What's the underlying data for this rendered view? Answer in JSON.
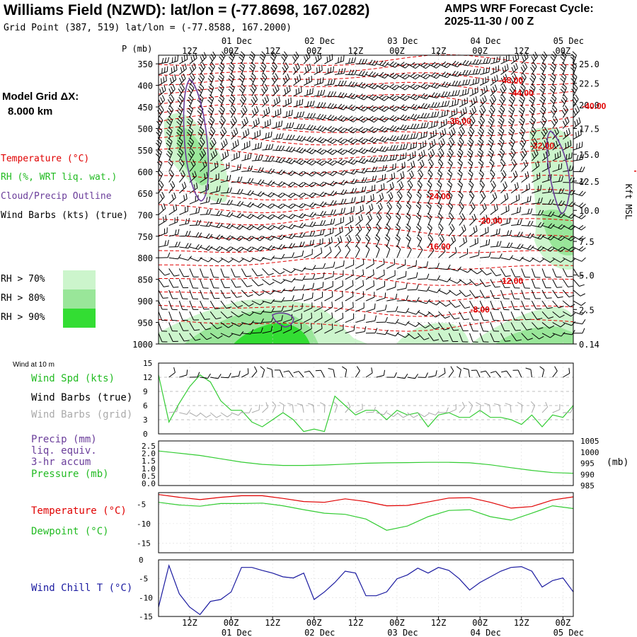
{
  "header": {
    "title": "Williams Field (NZWD):  lat/lon = (-77.8698, 167.0282)",
    "grid_point": "Grid Point (387, 519) lat/lon = (-77.8588, 167.2000)",
    "cycle_line1": "AMPS WRF Forecast Cycle:",
    "cycle_line2": "2025-11-30 / 00  Z"
  },
  "time_axis": {
    "hour_labels": [
      "12Z",
      "00Z",
      "12Z",
      "00Z",
      "12Z",
      "00Z",
      "12Z",
      "00Z",
      "12Z",
      "00Z"
    ],
    "date_labels": [
      "01 Dec",
      "02 Dec",
      "03 Dec",
      "04 Dec",
      "05 Dec"
    ]
  },
  "legend": {
    "model_grid": "Model Grid ΔX:",
    "model_grid_value": "8.000 km",
    "temperature": "Temperature (°C)",
    "rh": "RH (%, WRT liq. wat.)",
    "cloud": "Cloud/Precip Outline",
    "wind_barbs": "Wind Barbs (kts) (true)",
    "rh70": "RH > 70%",
    "rh80": "RH > 80%",
    "rh90": "RH > 90%"
  },
  "colors": {
    "temperature": "#e00000",
    "rh70": "#ccf5cc",
    "rh80": "#99e699",
    "rh90": "#33dd33",
    "cloud": "#6a3d9a",
    "wind_spd": "#33cc33",
    "barbs_grid": "#aaaaaa",
    "wind_chill": "#1a1aa0",
    "precip": "#6a3d9a"
  },
  "chart_data": [
    {
      "type": "line",
      "title": "Cross-section",
      "ylabel": "P (mb)",
      "ylabel_right": "Kft MSL",
      "pressure_ticks": [
        "350",
        "400",
        "450",
        "500",
        "550",
        "600",
        "650",
        "700",
        "750",
        "800",
        "850",
        "900",
        "950",
        "1000"
      ],
      "height_ticks": [
        {
          "p": 350,
          "label": "25.0"
        },
        {
          "p": 395,
          "label": "22.5"
        },
        {
          "p": 445,
          "label": "20.0"
        },
        {
          "p": 500,
          "label": "17.5"
        },
        {
          "p": 560,
          "label": "15.0"
        },
        {
          "p": 622,
          "label": "12.5"
        },
        {
          "p": 690,
          "label": "10.0"
        },
        {
          "p": 762,
          "label": "7.5"
        },
        {
          "p": 840,
          "label": "5.0"
        },
        {
          "p": 920,
          "label": "2.5"
        },
        {
          "p": 1000,
          "label": "0.14"
        }
      ],
      "temperature_labels": [
        {
          "label": "-48.00",
          "t": 34,
          "p": 388
        },
        {
          "label": "-44.00",
          "t": 35,
          "p": 418
        },
        {
          "label": "-40.00",
          "t": 42,
          "p": 448
        },
        {
          "label": "-36.00",
          "t": 29,
          "p": 483
        },
        {
          "label": "-32.00",
          "t": 37,
          "p": 540
        },
        {
          "label": "-28.00",
          "t": 47,
          "p": 598
        },
        {
          "label": "-24.00",
          "t": 27,
          "p": 658
        },
        {
          "label": "-20.00",
          "t": 32,
          "p": 714
        },
        {
          "label": "-16.00",
          "t": 27,
          "p": 774
        },
        {
          "label": "-12.00",
          "t": 34,
          "p": 854
        },
        {
          "label": "-8.00",
          "t": 31,
          "p": 920
        }
      ]
    },
    {
      "type": "line",
      "title": "Wind at 10 m",
      "yticks": [
        "15",
        "12",
        "9",
        "6",
        "3",
        "0"
      ],
      "ylim": [
        0,
        15
      ],
      "labels": {
        "wind_spd": "Wind Spd (kts)",
        "barbs_true": "Wind Barbs (true)",
        "barbs_grid": "Wind Barbs (grid)"
      },
      "t": [
        0,
        1,
        2,
        3,
        4,
        5,
        6,
        7,
        8,
        9,
        10,
        11,
        12,
        13,
        14,
        15,
        16,
        17,
        18,
        19,
        20,
        21,
        22,
        23,
        24,
        25,
        26,
        27,
        28,
        29,
        30,
        31,
        32,
        33,
        34,
        35,
        36,
        37,
        38,
        39,
        40
      ],
      "values": [
        12.5,
        2.5,
        6.5,
        10,
        12.5,
        11,
        7,
        5,
        5,
        2.5,
        1.5,
        3,
        4.5,
        3,
        0.5,
        1,
        0.5,
        8,
        6,
        4,
        5,
        5,
        3,
        5,
        4,
        4.5,
        1.5,
        4,
        4.5,
        3.5,
        3.5,
        5,
        3.5,
        3.5,
        3,
        2,
        4,
        1.5,
        4,
        3.5,
        6
      ]
    },
    {
      "type": "line",
      "title": "Precip and Pressure",
      "yticks_left": [
        "2.5",
        "2.0",
        "1.5",
        "1.0",
        "0.5",
        "0.0"
      ],
      "yticks_right": [
        "1005",
        "1000",
        "995",
        "990",
        "985"
      ],
      "ylabel_right": "(mb)",
      "labels": {
        "precip": "Precip (mm)",
        "liq": "liq. equiv.",
        "accum": "3-hr accum",
        "pressure": "Pressure (mb)"
      },
      "ylim_right": [
        985,
        1005
      ],
      "t": [
        0,
        2,
        4,
        6,
        8,
        10,
        12,
        14,
        16,
        18,
        20,
        22,
        24,
        26,
        28,
        30,
        32,
        34,
        36,
        38,
        40
      ],
      "values": [
        1000.5,
        999.5,
        998.5,
        997,
        995.5,
        994.5,
        994,
        994,
        994.2,
        994.6,
        995,
        995.2,
        995.3,
        995.4,
        995.4,
        995.2,
        994.3,
        993,
        991.8,
        990.8,
        990.5
      ]
    },
    {
      "type": "line",
      "title": "Temperature and Dewpoint",
      "yticks": [
        "-5",
        "-10",
        "-15"
      ],
      "ylim": [
        -17.5,
        -2
      ],
      "labels": {
        "temperature": "Temperature (°C)",
        "dewpoint": "Dewpoint (°C)"
      },
      "t": [
        0,
        2,
        4,
        6,
        8,
        10,
        12,
        14,
        16,
        18,
        20,
        22,
        24,
        26,
        28,
        30,
        32,
        34,
        36,
        38,
        40
      ],
      "series": [
        {
          "name": "Temperature",
          "values": [
            -2.5,
            -3.2,
            -3.8,
            -3.2,
            -2.8,
            -2.8,
            -3.5,
            -4.3,
            -4.5,
            -3.6,
            -4.3,
            -5.4,
            -5.3,
            -4.4,
            -3.4,
            -3.3,
            -4.5,
            -6,
            -5.6,
            -3.9,
            -3.1
          ]
        },
        {
          "name": "Dewpoint",
          "values": [
            -4.5,
            -5.2,
            -5.5,
            -4.8,
            -4.8,
            -4.7,
            -5.4,
            -6.4,
            -7.3,
            -7.6,
            -8.8,
            -11.7,
            -10.6,
            -8.2,
            -6.6,
            -6.4,
            -8.2,
            -9.1,
            -7.3,
            -5.4,
            -6.1
          ]
        }
      ]
    },
    {
      "type": "line",
      "title": "Wind Chill",
      "yticks": [
        "0",
        "-5",
        "-10",
        "-15"
      ],
      "ylim": [
        -15,
        0
      ],
      "labels": {
        "wind_chill": "Wind Chill T (°C)"
      },
      "t": [
        0,
        1,
        2,
        3,
        4,
        5,
        6,
        7,
        8,
        9,
        10,
        11,
        12,
        13,
        14,
        15,
        16,
        17,
        18,
        19,
        20,
        21,
        22,
        23,
        24,
        25,
        26,
        27,
        28,
        29,
        30,
        31,
        32,
        33,
        34,
        35,
        36,
        37,
        38,
        39,
        40
      ],
      "values": [
        -12.5,
        -1.5,
        -9,
        -12.5,
        -14.5,
        -11,
        -10.5,
        -8.5,
        -2,
        -2,
        -2.8,
        -3.5,
        -4.5,
        -4.8,
        -3.5,
        -10.5,
        -8.5,
        -6,
        -3,
        -3.5,
        -9.5,
        -9.5,
        -8.5,
        -5,
        -4,
        -2.2,
        -3.5,
        -2,
        -2.8,
        -5,
        -8,
        -6,
        -4.5,
        -3,
        -2,
        -1.8,
        -3,
        -7.2,
        -5.5,
        -4.8,
        -8.5
      ]
    }
  ]
}
